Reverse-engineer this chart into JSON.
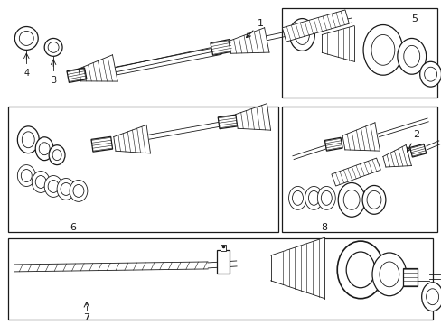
{
  "bg_color": "#ffffff",
  "line_color": "#1a1a1a",
  "fig_width": 4.89,
  "fig_height": 3.6,
  "dpi": 100,
  "lw_thin": 0.6,
  "lw_med": 0.9,
  "lw_thick": 1.2
}
